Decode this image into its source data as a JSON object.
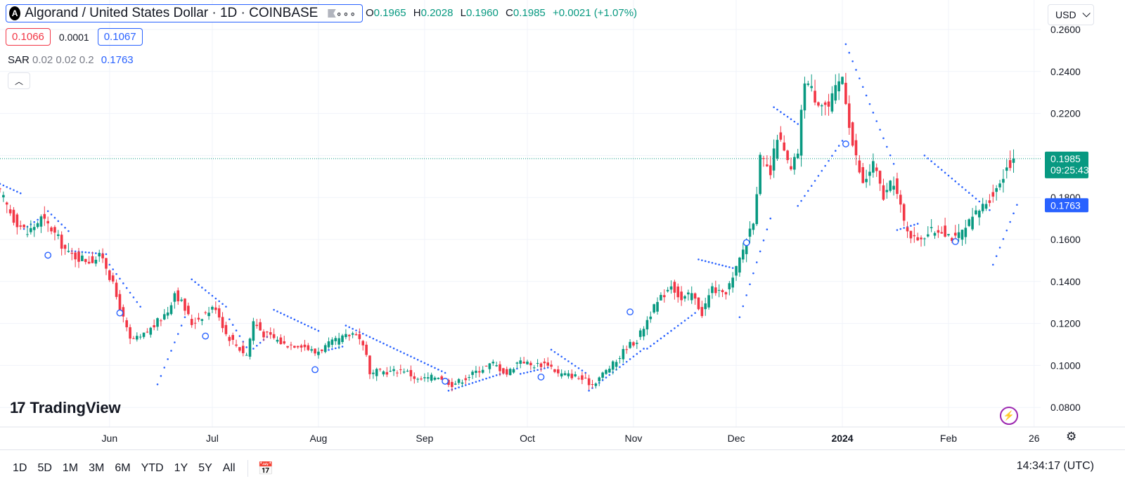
{
  "header": {
    "symbol_logo": "A",
    "title": "Algorand / United States Dollar · 1D · COINBASE",
    "ohlc": {
      "o_label": "O",
      "o": "0.1965",
      "h_label": "H",
      "h": "0.2028",
      "l_label": "L",
      "l": "0.1960",
      "c_label": "C",
      "c": "0.1985",
      "change": "+0.0021 (+1.07%)"
    },
    "bid": "0.1066",
    "spread": "0.0001",
    "ask": "0.1067",
    "indicator": {
      "name": "SAR",
      "params": "0.02 0.02 0.2",
      "value": "0.1763"
    },
    "currency": "USD"
  },
  "price_labels": {
    "last_price": "0.1985",
    "countdown": "09:25:43",
    "sar_value": "0.1763"
  },
  "branding": "TradingView",
  "bottom_bar": {
    "ranges": [
      "1D",
      "5D",
      "1M",
      "3M",
      "6M",
      "YTD",
      "1Y",
      "5Y",
      "All"
    ],
    "clock": "14:34:17 (UTC)"
  },
  "colors": {
    "up": "#089981",
    "down": "#f23645",
    "sar": "#2962ff",
    "grid": "#f0f3fa"
  },
  "chart_data": {
    "type": "candlestick",
    "title": "Algorand / United States Dollar · 1D · COINBASE",
    "y_ticks": [
      "0.2600",
      "0.2400",
      "0.2200",
      "0.1800",
      "0.1600",
      "0.1400",
      "0.1200",
      "0.1000",
      "0.0800"
    ],
    "ylim": [
      0.0735,
      0.2615
    ],
    "x_ticks": [
      {
        "label": "Jun",
        "day": 32,
        "bold": false
      },
      {
        "label": "Jul",
        "day": 62,
        "bold": false
      },
      {
        "label": "Aug",
        "day": 93,
        "bold": false
      },
      {
        "label": "Sep",
        "day": 124,
        "bold": false
      },
      {
        "label": "Oct",
        "day": 154,
        "bold": false
      },
      {
        "label": "Nov",
        "day": 185,
        "bold": false
      },
      {
        "label": "Dec",
        "day": 215,
        "bold": false
      },
      {
        "label": "2024",
        "day": 246,
        "bold": true
      },
      {
        "label": "Feb",
        "day": 277,
        "bold": false
      },
      {
        "label": "26",
        "day": 302,
        "bold": false
      }
    ],
    "start_date": "2023-05-01",
    "last_price": 0.1985,
    "sar_last": 0.1763,
    "anchors": [
      [
        0,
        0.182
      ],
      [
        4,
        0.17
      ],
      [
        8,
        0.163
      ],
      [
        12,
        0.17
      ],
      [
        15,
        0.165
      ],
      [
        20,
        0.153
      ],
      [
        26,
        0.15
      ],
      [
        30,
        0.152
      ],
      [
        33,
        0.138
      ],
      [
        36,
        0.122
      ],
      [
        38,
        0.112
      ],
      [
        41,
        0.113
      ],
      [
        45,
        0.119
      ],
      [
        49,
        0.126
      ],
      [
        51,
        0.135
      ],
      [
        53,
        0.13
      ],
      [
        56,
        0.12
      ],
      [
        60,
        0.125
      ],
      [
        63,
        0.128
      ],
      [
        66,
        0.115
      ],
      [
        70,
        0.108
      ],
      [
        72,
        0.105
      ],
      [
        74,
        0.121
      ],
      [
        77,
        0.115
      ],
      [
        80,
        0.113
      ],
      [
        83,
        0.11
      ],
      [
        88,
        0.11
      ],
      [
        92,
        0.106
      ],
      [
        96,
        0.11
      ],
      [
        100,
        0.113
      ],
      [
        104,
        0.116
      ],
      [
        107,
        0.106
      ],
      [
        108,
        0.095
      ],
      [
        110,
        0.097
      ],
      [
        114,
        0.097
      ],
      [
        118,
        0.098
      ],
      [
        122,
        0.093
      ],
      [
        128,
        0.095
      ],
      [
        132,
        0.091
      ],
      [
        136,
        0.094
      ],
      [
        140,
        0.098
      ],
      [
        144,
        0.101
      ],
      [
        148,
        0.096
      ],
      [
        152,
        0.103
      ],
      [
        155,
        0.1
      ],
      [
        160,
        0.101
      ],
      [
        163,
        0.096
      ],
      [
        168,
        0.095
      ],
      [
        173,
        0.091
      ],
      [
        176,
        0.096
      ],
      [
        180,
        0.102
      ],
      [
        183,
        0.109
      ],
      [
        186,
        0.112
      ],
      [
        190,
        0.125
      ],
      [
        193,
        0.132
      ],
      [
        196,
        0.139
      ],
      [
        199,
        0.131
      ],
      [
        202,
        0.134
      ],
      [
        205,
        0.125
      ],
      [
        208,
        0.137
      ],
      [
        211,
        0.133
      ],
      [
        214,
        0.141
      ],
      [
        218,
        0.16
      ],
      [
        220,
        0.17
      ],
      [
        222,
        0.198
      ],
      [
        225,
        0.191
      ],
      [
        227,
        0.21
      ],
      [
        231,
        0.192
      ],
      [
        233,
        0.202
      ],
      [
        235,
        0.237
      ],
      [
        238,
        0.228
      ],
      [
        242,
        0.223
      ],
      [
        246,
        0.238
      ],
      [
        249,
        0.205
      ],
      [
        252,
        0.186
      ],
      [
        255,
        0.196
      ],
      [
        258,
        0.18
      ],
      [
        261,
        0.188
      ],
      [
        264,
        0.168
      ],
      [
        267,
        0.16
      ],
      [
        271,
        0.163
      ],
      [
        275,
        0.165
      ],
      [
        279,
        0.16
      ],
      [
        282,
        0.165
      ],
      [
        285,
        0.172
      ],
      [
        288,
        0.178
      ],
      [
        291,
        0.184
      ],
      [
        294,
        0.195
      ],
      [
        296,
        0.1985
      ]
    ],
    "sar_segments": [
      {
        "from": 0,
        "to": 6,
        "start": 0.1865,
        "end": 0.182
      },
      {
        "from": 7,
        "to": 12,
        "start": 0.165,
        "end": 0.1705
      },
      {
        "from": 14,
        "to": 20,
        "start": 0.1735,
        "end": 0.164
      },
      {
        "from": 21,
        "to": 31,
        "start": 0.1545,
        "end": 0.153
      },
      {
        "from": 32,
        "to": 41,
        "start": 0.148,
        "end": 0.128
      },
      {
        "from": 46,
        "to": 54,
        "start": 0.091,
        "end": 0.123
      },
      {
        "from": 56,
        "to": 66,
        "start": 0.141,
        "end": 0.128
      },
      {
        "from": 67,
        "to": 73,
        "start": 0.122,
        "end": 0.106
      },
      {
        "from": 74,
        "to": 79,
        "start": 0.108,
        "end": 0.115
      },
      {
        "from": 80,
        "to": 93,
        "start": 0.1265,
        "end": 0.1165
      },
      {
        "from": 95,
        "to": 100,
        "start": 0.107,
        "end": 0.109
      },
      {
        "from": 101,
        "to": 130,
        "start": 0.119,
        "end": 0.0965
      },
      {
        "from": 131,
        "to": 151,
        "start": 0.088,
        "end": 0.0985
      },
      {
        "from": 152,
        "to": 160,
        "start": 0.096,
        "end": 0.099
      },
      {
        "from": 161,
        "to": 171,
        "start": 0.1075,
        "end": 0.0965
      },
      {
        "from": 172,
        "to": 188,
        "start": 0.088,
        "end": 0.108
      },
      {
        "from": 189,
        "to": 203,
        "start": 0.108,
        "end": 0.125
      },
      {
        "from": 204,
        "to": 215,
        "start": 0.1505,
        "end": 0.146
      },
      {
        "from": 216,
        "to": 225,
        "start": 0.123,
        "end": 0.17
      },
      {
        "from": 226,
        "to": 233,
        "start": 0.223,
        "end": 0.215
      },
      {
        "from": 233,
        "to": 246,
        "start": 0.176,
        "end": 0.207
      },
      {
        "from": 247,
        "to": 261,
        "start": 0.253,
        "end": 0.196
      },
      {
        "from": 262,
        "to": 268,
        "start": 0.1645,
        "end": 0.1675
      },
      {
        "from": 270,
        "to": 289,
        "start": 0.2,
        "end": 0.174
      },
      {
        "from": 290,
        "to": 297,
        "start": 0.148,
        "end": 0.1765
      }
    ],
    "sar_markers": [
      {
        "day": 14,
        "price": 0.1525
      },
      {
        "day": 35,
        "price": 0.125
      },
      {
        "day": 60,
        "price": 0.114
      },
      {
        "day": 92,
        "price": 0.098
      },
      {
        "day": 130,
        "price": 0.0925
      },
      {
        "day": 158,
        "price": 0.0945
      },
      {
        "day": 184,
        "price": 0.1255
      },
      {
        "day": 218,
        "price": 0.1585
      },
      {
        "day": 247,
        "price": 0.2055
      },
      {
        "day": 279,
        "price": 0.159
      }
    ]
  }
}
